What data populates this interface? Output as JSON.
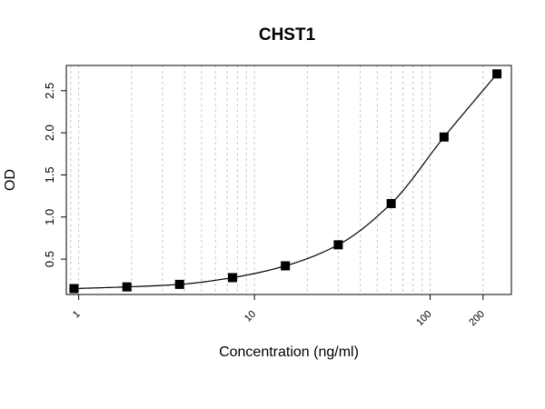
{
  "chart_data": {
    "type": "scatter",
    "title": "CHST1",
    "xlabel": "Concentration (ng/ml)",
    "ylabel": "OD",
    "x_scale": "log",
    "xlim": [
      0.85,
      290
    ],
    "ylim": [
      0.08,
      2.8
    ],
    "x_ticks": [
      {
        "value": 1,
        "label": "1"
      },
      {
        "value": 10,
        "label": "10"
      },
      {
        "value": 100,
        "label": "100"
      },
      {
        "value": 200,
        "label": "200"
      }
    ],
    "y_ticks": [
      {
        "value": 0.5,
        "label": "0.5"
      },
      {
        "value": 1.0,
        "label": "1.0"
      },
      {
        "value": 1.5,
        "label": "1.5"
      },
      {
        "value": 2.0,
        "label": "2.0"
      },
      {
        "value": 2.5,
        "label": "2.5"
      }
    ],
    "grid": "vertical-dashed",
    "marker": "square",
    "marker_color": "#000000",
    "line_color": "#000000",
    "grid_color": "#c8c8c8",
    "fit_curve": true,
    "series": [
      {
        "x": [
          0.94,
          1.88,
          3.75,
          7.5,
          15,
          30,
          60,
          120,
          240
        ],
        "y": [
          0.15,
          0.17,
          0.2,
          0.28,
          0.42,
          0.67,
          1.16,
          1.95,
          2.7
        ]
      }
    ]
  }
}
